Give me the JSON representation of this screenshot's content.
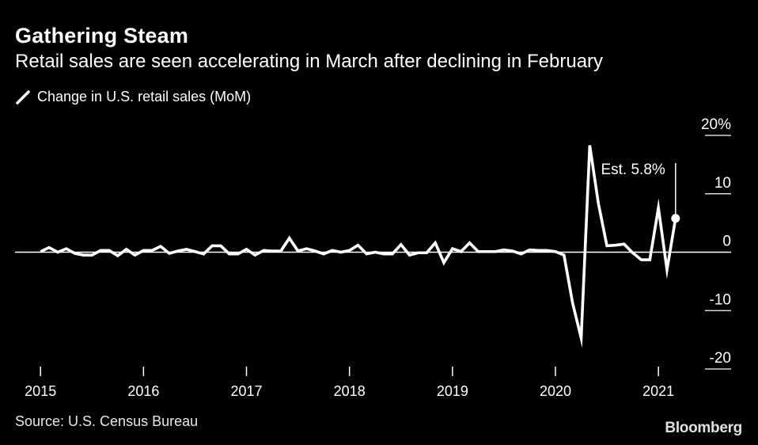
{
  "header": {
    "title": "Gathering Steam",
    "subtitle": "Retail sales are seen accelerating in March after declining in February"
  },
  "legend": {
    "label": "Change in U.S. retail sales (MoM)",
    "icon": "line-swatch-icon"
  },
  "footer": {
    "source": "Source: U.S. Census Bureau",
    "brand": "Bloomberg"
  },
  "colors": {
    "background": "#000000",
    "line": "#ffffff",
    "grid": "#ffffff",
    "text": "#ffffff"
  },
  "chart_data": {
    "type": "line",
    "title": "Gathering Steam",
    "subtitle": "Retail sales are seen accelerating in March after declining in February",
    "xlabel": "",
    "ylabel": "",
    "ylim": [
      -20,
      20
    ],
    "y_ticks": [
      {
        "value": 20,
        "label": "20%"
      },
      {
        "value": 10,
        "label": "10"
      },
      {
        "value": 0,
        "label": "0"
      },
      {
        "value": -10,
        "label": "-10"
      },
      {
        "value": -20,
        "label": "-20"
      }
    ],
    "x_ticks": [
      {
        "value": 2015,
        "label": "2015"
      },
      {
        "value": 2016,
        "label": "2016"
      },
      {
        "value": 2017,
        "label": "2017"
      },
      {
        "value": 2018,
        "label": "2018"
      },
      {
        "value": 2019,
        "label": "2019"
      },
      {
        "value": 2020,
        "label": "2020"
      },
      {
        "value": 2021,
        "label": "2021"
      }
    ],
    "xlim": [
      2014.96,
      2021.26
    ],
    "grid": "y-axis reference lines at ticks",
    "legend_position": "top-left",
    "series": [
      {
        "name": "Change in U.S. retail sales (MoM)",
        "x_start": 2015.0,
        "x_step": 0.08333,
        "values": [
          0.1,
          0.8,
          0.0,
          0.6,
          -0.2,
          -0.5,
          -0.5,
          0.3,
          0.3,
          -0.6,
          0.5,
          -0.5,
          0.3,
          0.3,
          1.0,
          -0.2,
          0.2,
          0.5,
          0.1,
          -0.3,
          1.1,
          1.1,
          -0.3,
          -0.3,
          0.5,
          -0.5,
          0.3,
          0.2,
          0.2,
          2.4,
          0.2,
          0.6,
          0.2,
          -0.3,
          0.3,
          0.0,
          0.3,
          1.2,
          -0.3,
          0.0,
          -0.3,
          -0.3,
          1.3,
          -0.5,
          -0.1,
          -0.1,
          1.6,
          -1.8,
          0.6,
          0.1,
          1.6,
          0.1,
          0.1,
          0.1,
          0.4,
          0.2,
          -0.3,
          0.4,
          0.3,
          0.3,
          0.1,
          -0.5,
          -8.7,
          -14.7,
          18.3,
          8.4,
          1.1,
          1.2,
          1.4,
          -0.1,
          -1.3,
          -1.3,
          7.6,
          -3.0,
          5.8
        ],
        "annotation": {
          "index": 74,
          "text": "Est. 5.8%",
          "style": "estimate"
        }
      }
    ]
  }
}
